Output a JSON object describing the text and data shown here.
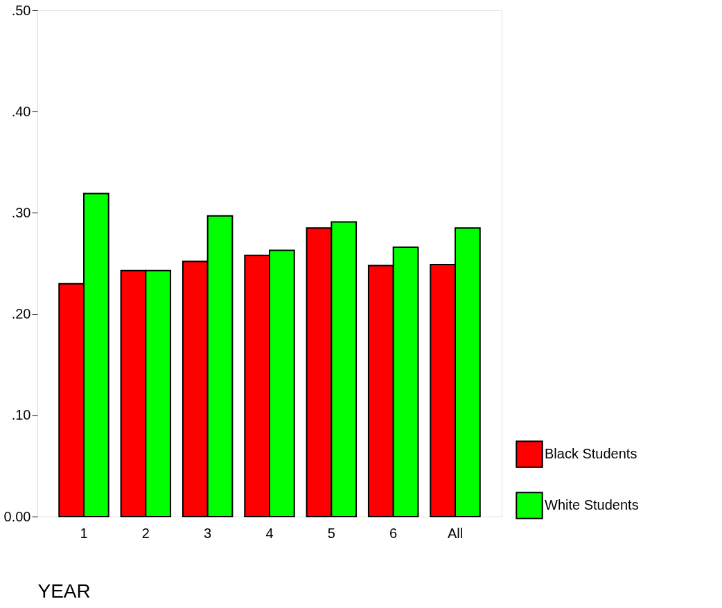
{
  "chart_data": {
    "type": "bar",
    "xlabel": "YEAR",
    "categories": [
      "1",
      "2",
      "3",
      "4",
      "5",
      "6",
      "All"
    ],
    "series": [
      {
        "name": "Black Students",
        "color": "#ff0000",
        "values": [
          0.23,
          0.243,
          0.252,
          0.258,
          0.285,
          0.248,
          0.249
        ]
      },
      {
        "name": "White Students",
        "color": "#00ff00",
        "values": [
          0.319,
          0.243,
          0.297,
          0.263,
          0.291,
          0.266,
          0.285
        ]
      }
    ],
    "ylim": [
      0,
      0.5
    ],
    "yticks": [
      {
        "value": 0,
        "label": "0.00"
      },
      {
        "value": 0.1,
        "label": ".10"
      },
      {
        "value": 0.2,
        "label": ".20"
      },
      {
        "value": 0.3,
        "label": ".30"
      },
      {
        "value": 0.4,
        "label": ".40"
      },
      {
        "value": 0.5,
        "label": ".50"
      }
    ],
    "grid": false,
    "legend": "bottom right"
  }
}
